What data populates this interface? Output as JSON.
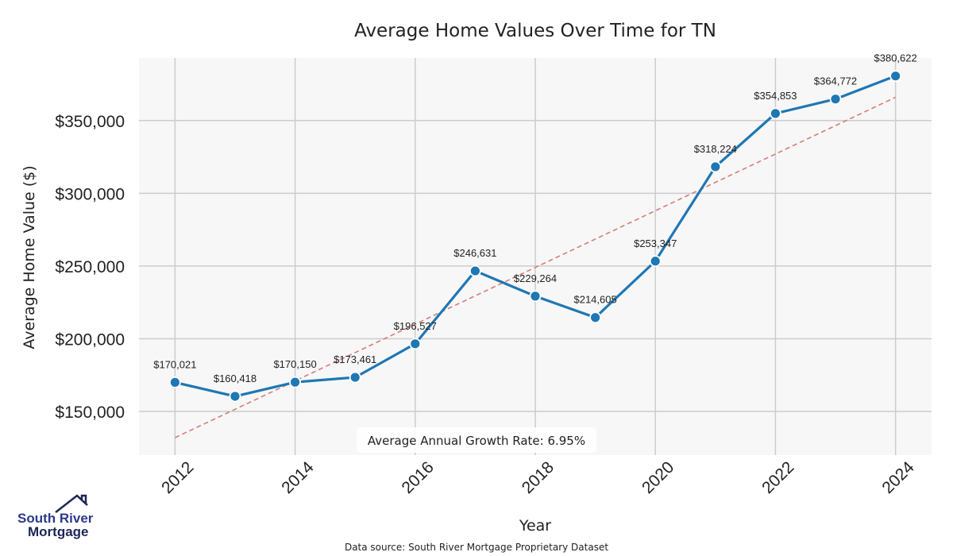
{
  "chart_data": {
    "type": "line",
    "title": "Average Home Values Over Time for TN",
    "xlabel": "Year",
    "ylabel": "Average Home Value ($)",
    "x": [
      2012,
      2013,
      2014,
      2015,
      2016,
      2017,
      2018,
      2019,
      2020,
      2021,
      2022,
      2023,
      2024
    ],
    "series": [
      {
        "name": "Average Home Value",
        "values": [
          170021,
          160418,
          170150,
          173461,
          196527,
          246631,
          229264,
          214605,
          253347,
          318224,
          354853,
          364772,
          380622
        ],
        "data_labels": [
          "$170,021",
          "$160,418",
          "$170,150",
          "$173,461",
          "$196,527",
          "$246,631",
          "$229,264",
          "$214,605",
          "$253,347",
          "$318,224",
          "$354,853",
          "$364,772",
          "$380,622"
        ],
        "color": "#1f77b4"
      },
      {
        "name": "Trend",
        "style": "dashed",
        "start": [
          2012,
          132000
        ],
        "end": [
          2024,
          366000
        ],
        "color": "#d97b7b"
      }
    ],
    "xticks": [
      "2012",
      "2014",
      "2016",
      "2018",
      "2020",
      "2022",
      "2024"
    ],
    "yticks": [
      {
        "value": 150000,
        "label": "$150,000"
      },
      {
        "value": 200000,
        "label": "$200,000"
      },
      {
        "value": 250000,
        "label": "$250,000"
      },
      {
        "value": 300000,
        "label": "$300,000"
      },
      {
        "value": 350000,
        "label": "$350,000"
      }
    ],
    "xlim": [
      2011.4,
      2024.6
    ],
    "ylim": [
      120000,
      393000
    ],
    "grid": true,
    "annotation": "Average Annual Growth Rate: 6.95%"
  },
  "footer": {
    "source": "Data source: South River Mortgage Proprietary Dataset"
  },
  "logo": {
    "line1": "South River",
    "line2": "Mortgage",
    "color1": "#2b3a8c",
    "color2": "#1d2656"
  },
  "colors": {
    "plot_bg": "#f7f7f7",
    "grid": "#cccccc",
    "line": "#1f77b4",
    "trend": "#d97b7b"
  }
}
